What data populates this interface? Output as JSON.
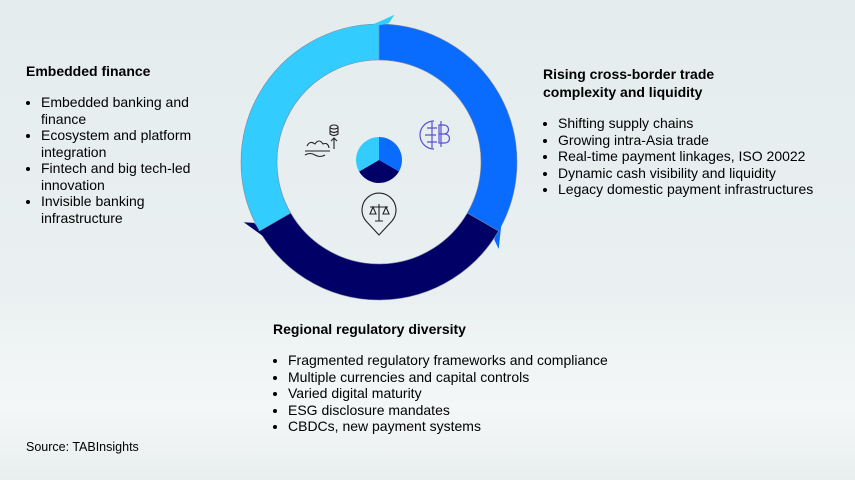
{
  "colors": {
    "embedded": "#33ccff",
    "crossborder": "#0a6bff",
    "regulatory": "#000066"
  },
  "embedded_finance": {
    "title": "Embedded finance",
    "items": [
      "Embedded banking and finance",
      "Ecosystem and platform integration",
      "Fintech and big tech-led innovation",
      "Invisible banking infrastructure"
    ],
    "icon": "gears-coins-icon"
  },
  "cross_border": {
    "title": "Rising cross-border trade complexity and liquidity",
    "items": [
      "Shifting supply chains",
      "Growing intra-Asia trade",
      "Real-time payment linkages, ISO 20022",
      "Dynamic cash visibility and liquidity",
      "Legacy domestic payment infrastructures"
    ],
    "icon": "globe-currency-icon"
  },
  "regulatory": {
    "title": "Regional regulatory diversity",
    "items": [
      "Fragmented regulatory frameworks and compliance",
      "Multiple currencies and capital controls",
      "Varied digital maturity",
      "ESG disclosure mandates",
      "CBDCs, new payment systems"
    ],
    "icon": "scales-pin-icon"
  },
  "source": "Source: TABInsights"
}
